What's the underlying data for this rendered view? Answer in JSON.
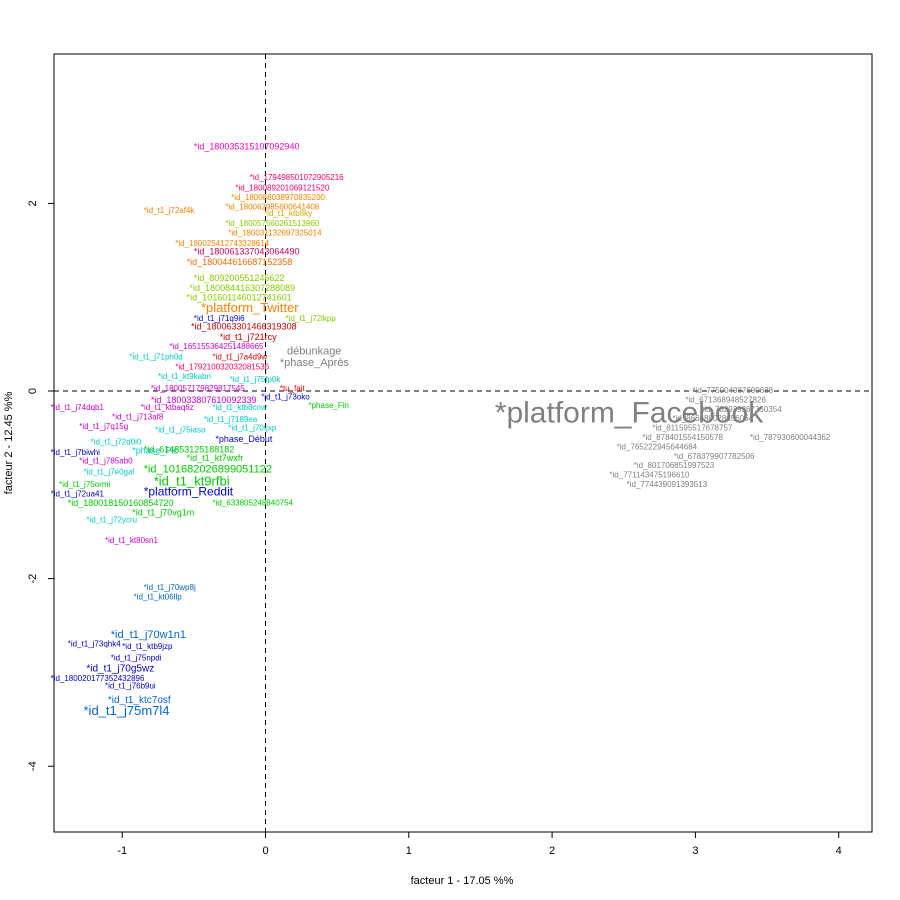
{
  "chart_data": {
    "type": "scatter",
    "xlabel": "facteur  1  - 17.05 %%",
    "ylabel": "facteur  2  - 12.45 %%",
    "xlim": [
      -1.5,
      4.25
    ],
    "ylim": [
      -4.75,
      3.6
    ],
    "xticks": [
      -1,
      0,
      1,
      2,
      3,
      4
    ],
    "yticks": [
      -4,
      -2,
      0,
      2
    ],
    "reference_lines": {
      "x": 0,
      "y": 0,
      "style": "dashed"
    },
    "points": [
      {
        "label": "*platform_Facebook",
        "x": 1.6,
        "y": -0.25,
        "size": 30,
        "color": "#808080"
      },
      {
        "label": "*platform_Twitter",
        "x": -0.45,
        "y": 0.88,
        "size": 13,
        "color": "#ff8000"
      },
      {
        "label": "*platform_Reddit",
        "x": -0.85,
        "y": -1.08,
        "size": 12,
        "color": "#0000cc"
      },
      {
        "label": "débunkage",
        "x": 0.15,
        "y": 0.42,
        "size": 11,
        "color": "#808080"
      },
      {
        "label": "*phase_Après",
        "x": 0.1,
        "y": 0.3,
        "size": 11,
        "color": "#808080"
      },
      {
        "label": "*phase_Début",
        "x": -0.35,
        "y": -0.52,
        "size": 9,
        "color": "#0000cc"
      },
      {
        "label": "*phase_Fin",
        "x": 0.3,
        "y": -0.16,
        "size": 8,
        "color": "#00cc00"
      },
      {
        "label": "*phase_Pic",
        "x": -0.93,
        "y": -0.64,
        "size": 9,
        "color": "#00cccc"
      },
      {
        "label": "*tu_fait",
        "x": 0.1,
        "y": 0.02,
        "size": 8,
        "color": "#ff0000"
      },
      {
        "label": "*id_180035315107092940",
        "x": -0.5,
        "y": 2.6,
        "size": 9,
        "color": "#ff00cc"
      },
      {
        "label": "*id_179498501072905216",
        "x": -0.11,
        "y": 2.27,
        "size": 8,
        "color": "#ff0066"
      },
      {
        "label": "*id_180089201069121520",
        "x": -0.21,
        "y": 2.16,
        "size": 8,
        "color": "#ff0066"
      },
      {
        "label": "*id_180088038970835200",
        "x": -0.24,
        "y": 2.06,
        "size": 8,
        "color": "#ff8000"
      },
      {
        "label": "*id_180062985600641408",
        "x": -0.28,
        "y": 1.96,
        "size": 8,
        "color": "#ff8000"
      },
      {
        "label": "*id_t1_j72af4k",
        "x": -0.85,
        "y": 1.92,
        "size": 8,
        "color": "#ff8000"
      },
      {
        "label": "*id_t1_ktb8ky",
        "x": -0.01,
        "y": 1.89,
        "size": 8,
        "color": "#ccaa00"
      },
      {
        "label": "*id_180057560261513960",
        "x": -0.28,
        "y": 1.78,
        "size": 8,
        "color": "#88cc00"
      },
      {
        "label": "*id_180031132697325014",
        "x": -0.26,
        "y": 1.68,
        "size": 8,
        "color": "#ff8000"
      },
      {
        "label": "*id_180025412743328614",
        "x": -0.63,
        "y": 1.57,
        "size": 8,
        "color": "#ff8000"
      },
      {
        "label": "*id_180061337043064490",
        "x": -0.5,
        "y": 1.48,
        "size": 9,
        "color": "#cc0066"
      },
      {
        "label": "*id_180044616687152358",
        "x": -0.55,
        "y": 1.37,
        "size": 9,
        "color": "#ff6600"
      },
      {
        "label": "*id_809200551245622",
        "x": -0.5,
        "y": 1.2,
        "size": 9,
        "color": "#88cc00"
      },
      {
        "label": "*id_180084416307288089",
        "x": -0.53,
        "y": 1.09,
        "size": 9,
        "color": "#88cc00"
      },
      {
        "label": "*id_101601146012741601",
        "x": -0.55,
        "y": 0.99,
        "size": 9,
        "color": "#88cc00"
      },
      {
        "label": "*id_t1_j71q9i6",
        "x": -0.5,
        "y": 0.77,
        "size": 8,
        "color": "#0000cc"
      },
      {
        "label": "*id_t1_j72lkpp",
        "x": 0.14,
        "y": 0.77,
        "size": 8,
        "color": "#88cc00"
      },
      {
        "label": "*id_180063301466319308",
        "x": -0.52,
        "y": 0.68,
        "size": 9,
        "color": "#cc0000"
      },
      {
        "label": "*id_t1_j721rcy",
        "x": -0.32,
        "y": 0.57,
        "size": 9,
        "color": "#cc0000"
      },
      {
        "label": "*id_165155364251488665",
        "x": -0.67,
        "y": 0.47,
        "size": 8,
        "color": "#cc00cc"
      },
      {
        "label": "*id_t1_j71ph0d",
        "x": -0.95,
        "y": 0.36,
        "size": 8,
        "color": "#00cccc"
      },
      {
        "label": "*id_t1_j7a4d9w",
        "x": -0.37,
        "y": 0.36,
        "size": 8,
        "color": "#cc0000"
      },
      {
        "label": "*id_179210032032081536",
        "x": -0.63,
        "y": 0.25,
        "size": 8,
        "color": "#ff0066"
      },
      {
        "label": "*id_t1_kt9kabn",
        "x": -0.75,
        "y": 0.15,
        "size": 8,
        "color": "#00cccc"
      },
      {
        "label": "*id_t1_j75fp0k",
        "x": -0.25,
        "y": 0.12,
        "size": 8,
        "color": "#00cccc"
      },
      {
        "label": "*id_180057179829817545",
        "x": -0.8,
        "y": 0.02,
        "size": 8,
        "color": "#cc00cc"
      },
      {
        "label": "*id_t1_j73oko",
        "x": -0.03,
        "y": -0.07,
        "size": 8,
        "color": "#0000cc"
      },
      {
        "label": "*id_180033807610092339",
        "x": -0.8,
        "y": -0.1,
        "size": 9,
        "color": "#cc00cc"
      },
      {
        "label": "*id_t1_j74dqb1",
        "x": -1.5,
        "y": -0.18,
        "size": 8,
        "color": "#cc00cc"
      },
      {
        "label": "*id_t1_ktbaq6z",
        "x": -0.87,
        "y": -0.18,
        "size": 8,
        "color": "#cc00cc"
      },
      {
        "label": "*id_t1_ktb8cnw",
        "x": -0.37,
        "y": -0.18,
        "size": 8,
        "color": "#00cccc"
      },
      {
        "label": "*id_t1_j713af8",
        "x": -1.07,
        "y": -0.28,
        "size": 8,
        "color": "#cc00cc"
      },
      {
        "label": "*id_t1_j7189ea",
        "x": -0.43,
        "y": -0.31,
        "size": 8,
        "color": "#00cccc"
      },
      {
        "label": "*id_t1_j7q15g",
        "x": -1.3,
        "y": -0.38,
        "size": 8,
        "color": "#cc00cc"
      },
      {
        "label": "*id_t1_j75iaso",
        "x": -0.77,
        "y": -0.42,
        "size": 8,
        "color": "#00cccc"
      },
      {
        "label": "*id_t1_j70tjxp",
        "x": -0.26,
        "y": -0.4,
        "size": 8,
        "color": "#00cccc"
      },
      {
        "label": "*id_t1_j72d0i0",
        "x": -1.22,
        "y": -0.55,
        "size": 8,
        "color": "#00cccc"
      },
      {
        "label": "*id_614853125188182",
        "x": -0.85,
        "y": -0.63,
        "size": 9,
        "color": "#00cc00"
      },
      {
        "label": "*id_t1_j7biwhi",
        "x": -1.5,
        "y": -0.66,
        "size": 8,
        "color": "#0000cc"
      },
      {
        "label": "*id_t1_j785ab0",
        "x": -1.3,
        "y": -0.75,
        "size": 8,
        "color": "#cc00cc"
      },
      {
        "label": "*id_t1_kt7wxfr",
        "x": -0.55,
        "y": -0.72,
        "size": 9,
        "color": "#00cc00"
      },
      {
        "label": "*id_101682026899051122",
        "x": -0.85,
        "y": -0.84,
        "size": 11,
        "color": "#00cc00"
      },
      {
        "label": "*id_t1_j7e0gal",
        "x": -1.27,
        "y": -0.87,
        "size": 8,
        "color": "#00cccc"
      },
      {
        "label": "*id_t1_kt9rfbi",
        "x": -0.78,
        "y": -0.97,
        "size": 13,
        "color": "#00cc00"
      },
      {
        "label": "*id_t1_j75ormi",
        "x": -1.44,
        "y": -1.0,
        "size": 8,
        "color": "#00cc00"
      },
      {
        "label": "*id_t1_j72ua41",
        "x": -1.5,
        "y": -1.1,
        "size": 8,
        "color": "#0000cc"
      },
      {
        "label": "*id_180018150160854720",
        "x": -1.38,
        "y": -1.2,
        "size": 9,
        "color": "#00cc00"
      },
      {
        "label": "*id_633805248840754",
        "x": -0.37,
        "y": -1.2,
        "size": 8,
        "color": "#00cc00"
      },
      {
        "label": "*id_t1_j70vg1m",
        "x": -0.93,
        "y": -1.3,
        "size": 9,
        "color": "#00cc00"
      },
      {
        "label": "*id_t1_j72ycru",
        "x": -1.25,
        "y": -1.38,
        "size": 8,
        "color": "#00cccc"
      },
      {
        "label": "*id_t1_kt80sn1",
        "x": -1.12,
        "y": -1.6,
        "size": 8,
        "color": "#cc00cc"
      },
      {
        "label": "*id_t1_j70wp8j",
        "x": -0.85,
        "y": -2.1,
        "size": 8,
        "color": "#0066cc"
      },
      {
        "label": "*id_t1_kt06llp",
        "x": -0.92,
        "y": -2.2,
        "size": 8,
        "color": "#0066cc"
      },
      {
        "label": "*id_t1_j70w1n1",
        "x": -1.08,
        "y": -2.6,
        "size": 11,
        "color": "#0066cc"
      },
      {
        "label": "*id_t1_j73qhk4",
        "x": -1.38,
        "y": -2.7,
        "size": 8,
        "color": "#0000cc"
      },
      {
        "label": "*id_t1_ktb9jzp",
        "x": -1.0,
        "y": -2.73,
        "size": 8,
        "color": "#0000cc"
      },
      {
        "label": "*id_t1_j75npdi",
        "x": -1.08,
        "y": -2.85,
        "size": 8,
        "color": "#0000cc"
      },
      {
        "label": "*id_t1_j70g5wz",
        "x": -1.25,
        "y": -2.96,
        "size": 10,
        "color": "#0000cc"
      },
      {
        "label": "*id_180020177352432896",
        "x": -1.5,
        "y": -3.07,
        "size": 8,
        "color": "#0000cc"
      },
      {
        "label": "*id_t1_j76b9ui",
        "x": -1.12,
        "y": -3.15,
        "size": 8,
        "color": "#0000cc"
      },
      {
        "label": "*id_t1_ktc7osf",
        "x": -1.1,
        "y": -3.3,
        "size": 10,
        "color": "#0066cc"
      },
      {
        "label": "*id_t1_j75m7l4",
        "x": -1.27,
        "y": -3.42,
        "size": 13,
        "color": "#0066cc"
      },
      {
        "label": "*id_775904987690688",
        "x": 2.98,
        "y": 0.0,
        "size": 8,
        "color": "#808080"
      },
      {
        "label": "*id_671368948527826",
        "x": 2.93,
        "y": -0.1,
        "size": 8,
        "color": "#808080"
      },
      {
        "label": "*id_782939367350354",
        "x": 3.04,
        "y": -0.2,
        "size": 8,
        "color": "#808080"
      },
      {
        "label": "*id_866680028656064",
        "x": 2.84,
        "y": -0.3,
        "size": 8,
        "color": "#808080"
      },
      {
        "label": "*id_811595517678757",
        "x": 2.7,
        "y": -0.4,
        "size": 8,
        "color": "#808080"
      },
      {
        "label": "*id_878401554150578",
        "x": 2.63,
        "y": -0.5,
        "size": 8,
        "color": "#808080"
      },
      {
        "label": "*id_787930600044362",
        "x": 3.38,
        "y": -0.5,
        "size": 8,
        "color": "#808080"
      },
      {
        "label": "*id_765222945644684",
        "x": 2.45,
        "y": -0.6,
        "size": 8,
        "color": "#808080"
      },
      {
        "label": "*id_678379907782506",
        "x": 2.85,
        "y": -0.7,
        "size": 8,
        "color": "#808080"
      },
      {
        "label": "*id_801706851997523",
        "x": 2.57,
        "y": -0.8,
        "size": 8,
        "color": "#808080"
      },
      {
        "label": "*id_771143475196610",
        "x": 2.4,
        "y": -0.9,
        "size": 8,
        "color": "#808080"
      },
      {
        "label": "*id_774439091393513",
        "x": 2.52,
        "y": -1.0,
        "size": 8,
        "color": "#808080"
      }
    ]
  }
}
